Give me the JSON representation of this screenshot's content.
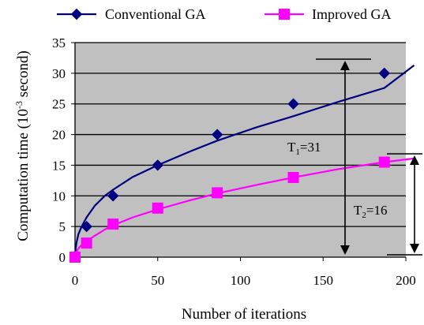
{
  "chart_data": {
    "type": "line",
    "xlabel": "Number of iterations",
    "ylabel": "Computation time",
    "ylabel_unit_base": "10",
    "ylabel_unit_exp": "-3",
    "ylabel_unit_word": "second",
    "xlim": [
      0,
      200
    ],
    "ylim": [
      0,
      35
    ],
    "x_ticks": [
      "0",
      "50",
      "100",
      "150",
      "200"
    ],
    "y_ticks": [
      "0",
      "5",
      "10",
      "15",
      "20",
      "25",
      "30",
      "35"
    ],
    "grid": "horizontal",
    "plot_background": "#c0c0c0",
    "legend_position": "top",
    "series": [
      {
        "name": "Conventional GA",
        "color": "#000080",
        "marker": "diamond",
        "x": [
          0,
          7,
          23,
          50,
          86,
          132,
          187
        ],
        "y": [
          0,
          5,
          10,
          15,
          20,
          25,
          30
        ]
      },
      {
        "name": "Improved GA",
        "color": "#ff00ff",
        "marker": "square",
        "x": [
          0,
          7,
          23,
          50,
          86,
          132,
          187
        ],
        "y": [
          0,
          2.3,
          5.4,
          8,
          10.5,
          13,
          15.5
        ]
      }
    ],
    "trendlines": [
      {
        "series": 0,
        "x": [
          0.5,
          1,
          2,
          4,
          7,
          12,
          18,
          23,
          35,
          50,
          70,
          86,
          110,
          132,
          160,
          187,
          205
        ],
        "y": [
          1.6,
          2.5,
          3.7,
          5.0,
          6.5,
          8.4,
          10.0,
          11.0,
          13.1,
          15.0,
          17.3,
          19.0,
          21.2,
          23.0,
          25.4,
          27.6,
          31.3
        ]
      },
      {
        "series": 1,
        "x": [
          0.5,
          1,
          2,
          4,
          7,
          12,
          18,
          23,
          35,
          50,
          70,
          86,
          110,
          132,
          160,
          187,
          205
        ],
        "y": [
          0.6,
          0.9,
          1.4,
          2.0,
          2.6,
          3.5,
          4.5,
          5.2,
          6.5,
          7.8,
          9.3,
          10.4,
          11.8,
          13.0,
          14.4,
          15.5,
          16.1
        ]
      }
    ],
    "annotations": [
      {
        "label_main": "T",
        "label_sub": "1",
        "label_rest": "=31",
        "from": 0,
        "to": 31
      },
      {
        "label_main": "T",
        "label_sub": "2",
        "label_rest": "=16",
        "from": 0,
        "to": 16
      }
    ]
  }
}
